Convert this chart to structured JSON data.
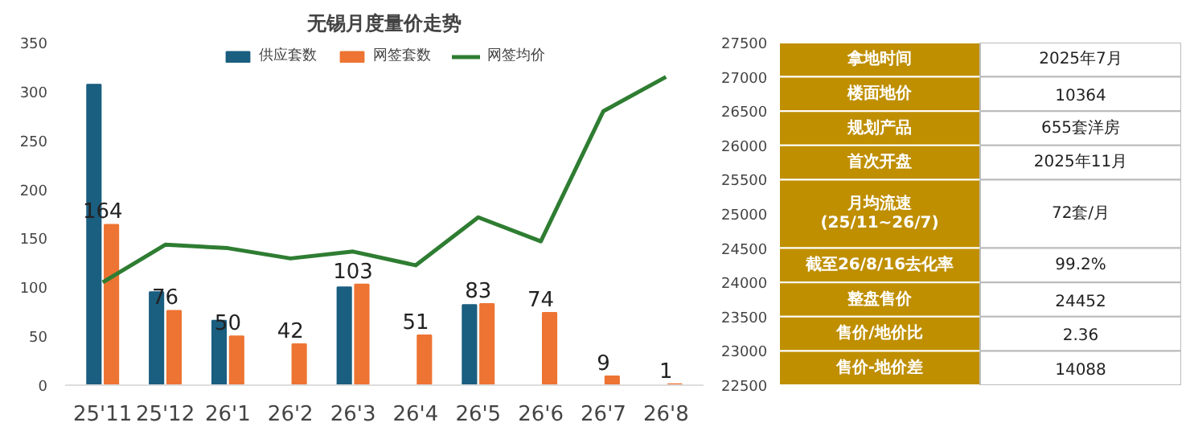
{
  "chart_data": [
    {
      "type": "bar",
      "title": "无锡月度量价走势",
      "categories": [
        "25'11",
        "25'12",
        "26'1",
        "26'2",
        "26'3",
        "26'4",
        "26'5",
        "26'6",
        "26'7",
        "26'8"
      ],
      "series": [
        {
          "name": "供应套数",
          "color": "#1a5e80",
          "values": [
            307,
            95,
            66,
            null,
            100,
            null,
            82,
            null,
            null,
            null
          ]
        },
        {
          "name": "网签套数",
          "color": "#ed7433",
          "values": [
            164,
            76,
            50,
            42,
            103,
            51,
            83,
            74,
            9,
            1
          ],
          "value_labels": [
            "164",
            "76",
            "50",
            "42",
            "103",
            "51",
            "83",
            "74",
            "9",
            "1"
          ]
        },
        {
          "name": "网签均价",
          "color": "#2e7d32",
          "type": "line",
          "axis": "y2",
          "values": [
            24000,
            24550,
            24500,
            24350,
            24450,
            24250,
            24950,
            24600,
            26500,
            27000
          ]
        }
      ],
      "ylim": [
        0,
        350
      ],
      "yticks": [
        0,
        50,
        100,
        150,
        200,
        250,
        300,
        350
      ],
      "y2lim": [
        22500,
        27500
      ],
      "y2ticks": [
        22500,
        23000,
        23500,
        24000,
        24500,
        25000,
        25500,
        26000,
        26500,
        27000,
        27500
      ],
      "legend": "top",
      "grid": false
    },
    {
      "type": "other",
      "y_categories": [
        "拿地时间",
        "楼面地价",
        "规划产品",
        "首次开盘",
        "月均流速\n(25/11~26/7)",
        "截至26/8/16去化率",
        "整盘售价",
        "售价/地价比",
        "售价-地价差"
      ],
      "cell_labels": [
        [
          "2025年7月"
        ],
        [
          "10364"
        ],
        [
          "655套洋房"
        ],
        [
          "2025年11月"
        ],
        [
          "72套/月"
        ],
        [
          "99.2%"
        ],
        [
          "24452"
        ],
        [
          "2.36"
        ],
        [
          "14088"
        ]
      ],
      "colors": [
        "#bf8f00",
        "#ffffff"
      ]
    }
  ]
}
